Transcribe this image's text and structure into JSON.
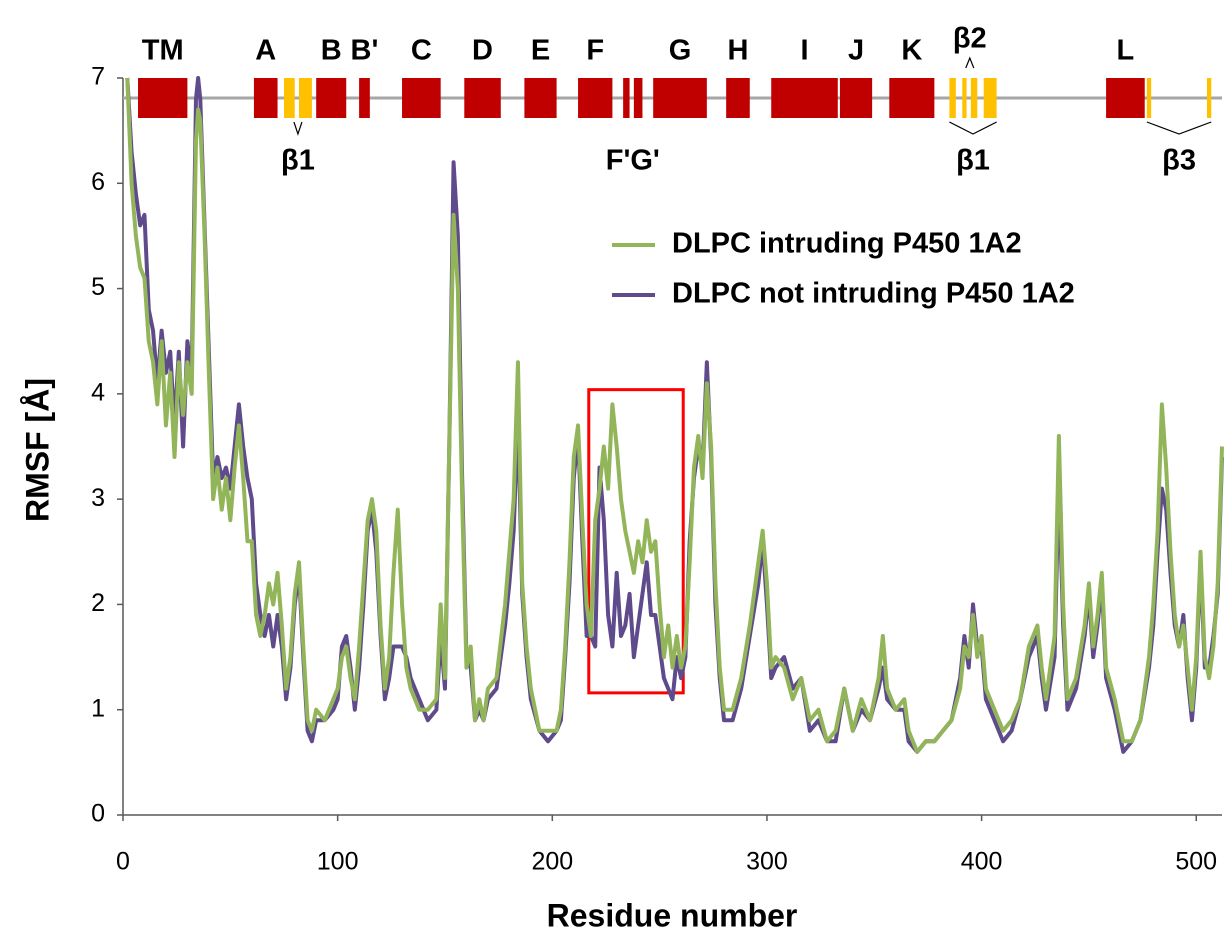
{
  "chart_data": {
    "type": "line",
    "x_label": "Residue number",
    "y_label": "RMSF [Å]",
    "xlim": [
      0,
      512
    ],
    "ylim": [
      0,
      7
    ],
    "xticks": [
      0,
      100,
      200,
      300,
      400,
      500
    ],
    "yticks": [
      0,
      1,
      2,
      3,
      4,
      5,
      6,
      7
    ],
    "legend_position": "upper right",
    "x": [
      2,
      4,
      6,
      8,
      10,
      12,
      14,
      16,
      18,
      20,
      22,
      24,
      26,
      28,
      30,
      32,
      34,
      35,
      36,
      38,
      40,
      42,
      44,
      46,
      48,
      50,
      52,
      54,
      56,
      58,
      60,
      62,
      64,
      66,
      68,
      70,
      72,
      74,
      76,
      78,
      80,
      82,
      84,
      86,
      88,
      90,
      94,
      98,
      100,
      102,
      104,
      106,
      108,
      110,
      112,
      114,
      116,
      118,
      120,
      122,
      124,
      126,
      128,
      130,
      132,
      134,
      138,
      142,
      146,
      148,
      150,
      152,
      154,
      156,
      158,
      160,
      162,
      164,
      166,
      168,
      170,
      174,
      178,
      180,
      182,
      184,
      186,
      188,
      190,
      194,
      198,
      202,
      204,
      206,
      208,
      210,
      212,
      214,
      216,
      218,
      220,
      222,
      224,
      226,
      228,
      230,
      232,
      234,
      236,
      238,
      240,
      242,
      244,
      246,
      248,
      250,
      252,
      254,
      256,
      258,
      260,
      262,
      264,
      266,
      268,
      270,
      272,
      274,
      276,
      278,
      280,
      284,
      288,
      292,
      296,
      298,
      300,
      302,
      304,
      308,
      312,
      316,
      320,
      324,
      328,
      332,
      336,
      340,
      344,
      348,
      352,
      354,
      356,
      360,
      364,
      366,
      370,
      374,
      378,
      382,
      386,
      390,
      392,
      394,
      396,
      398,
      400,
      402,
      406,
      410,
      414,
      418,
      422,
      426,
      428,
      430,
      434,
      436,
      438,
      440,
      444,
      448,
      450,
      452,
      454,
      456,
      458,
      462,
      466,
      470,
      474,
      478,
      480,
      482,
      484,
      486,
      488,
      490,
      492,
      494,
      496,
      498,
      500,
      502,
      504,
      506,
      508,
      510,
      512
    ],
    "series": [
      {
        "name": "DLPC intruding P450 1A2",
        "color": "#93b55a",
        "values": [
          7.0,
          6.0,
          5.5,
          5.2,
          5.1,
          4.5,
          4.3,
          3.9,
          4.5,
          3.7,
          4.2,
          3.4,
          4.3,
          3.8,
          4.3,
          4.0,
          6.4,
          6.7,
          6.6,
          5.5,
          4.2,
          3.0,
          3.3,
          2.9,
          3.2,
          2.8,
          3.3,
          3.7,
          3.2,
          2.6,
          2.6,
          1.9,
          1.7,
          1.9,
          2.2,
          2.0,
          2.3,
          1.8,
          1.2,
          1.5,
          2.1,
          2.4,
          1.6,
          0.9,
          0.8,
          1.0,
          0.9,
          1.1,
          1.2,
          1.5,
          1.6,
          1.3,
          1.1,
          1.6,
          2.2,
          2.8,
          3.0,
          2.7,
          1.8,
          1.2,
          1.5,
          2.3,
          2.9,
          2.0,
          1.4,
          1.2,
          1.0,
          1.0,
          1.1,
          2.0,
          1.3,
          3.5,
          5.7,
          5.0,
          3.0,
          1.4,
          1.6,
          0.9,
          1.1,
          0.9,
          1.2,
          1.3,
          2.0,
          2.5,
          3.0,
          4.3,
          2.2,
          1.6,
          1.2,
          0.8,
          0.8,
          0.8,
          1.0,
          1.6,
          2.4,
          3.4,
          3.7,
          2.8,
          2.0,
          1.7,
          2.8,
          3.1,
          3.5,
          3.1,
          3.9,
          3.5,
          3.0,
          2.7,
          2.5,
          2.3,
          2.6,
          2.4,
          2.8,
          2.5,
          2.6,
          2.0,
          1.5,
          1.8,
          1.4,
          1.7,
          1.4,
          1.6,
          2.4,
          3.3,
          3.6,
          3.2,
          4.1,
          3.5,
          2.2,
          1.4,
          1.0,
          1.0,
          1.3,
          1.8,
          2.4,
          2.7,
          2.2,
          1.4,
          1.5,
          1.4,
          1.1,
          1.3,
          0.9,
          1.0,
          0.7,
          0.8,
          1.2,
          0.8,
          1.1,
          0.9,
          1.3,
          1.7,
          1.2,
          1.0,
          1.1,
          0.8,
          0.6,
          0.7,
          0.7,
          0.8,
          0.9,
          1.2,
          1.6,
          1.5,
          1.9,
          1.5,
          1.7,
          1.2,
          1.0,
          0.8,
          0.9,
          1.1,
          1.6,
          1.8,
          1.4,
          1.1,
          1.7,
          3.6,
          2.0,
          1.1,
          1.3,
          1.8,
          2.2,
          1.6,
          1.9,
          2.3,
          1.4,
          1.1,
          0.7,
          0.7,
          0.9,
          1.5,
          2.0,
          2.7,
          3.9,
          3.3,
          2.5,
          1.9,
          1.6,
          1.8,
          1.4,
          1.0,
          1.5,
          2.5,
          1.5,
          1.3,
          1.6,
          2.2,
          3.5
        ]
      },
      {
        "name": "DLPC not intruding P450 1A2",
        "color": "#5f4b8b",
        "values": [
          7.0,
          6.3,
          5.9,
          5.6,
          5.7,
          4.8,
          4.6,
          4.1,
          4.6,
          4.2,
          4.4,
          3.7,
          4.4,
          3.5,
          4.5,
          4.2,
          6.8,
          7.0,
          6.8,
          5.6,
          4.4,
          3.2,
          3.4,
          3.2,
          3.3,
          3.1,
          3.5,
          3.9,
          3.5,
          3.2,
          3.0,
          2.2,
          1.9,
          1.7,
          1.9,
          1.6,
          1.9,
          1.6,
          1.1,
          1.4,
          2.0,
          2.3,
          1.5,
          0.8,
          0.7,
          0.9,
          0.9,
          1.0,
          1.1,
          1.6,
          1.7,
          1.4,
          1.0,
          1.4,
          2.0,
          2.7,
          2.9,
          2.5,
          1.7,
          1.1,
          1.3,
          1.6,
          1.6,
          1.6,
          1.5,
          1.3,
          1.1,
          0.9,
          1.0,
          1.7,
          1.2,
          3.5,
          6.2,
          5.5,
          3.2,
          1.5,
          1.4,
          0.9,
          1.0,
          0.9,
          1.1,
          1.2,
          1.8,
          2.2,
          2.7,
          3.8,
          2.1,
          1.5,
          1.1,
          0.8,
          0.7,
          0.8,
          0.9,
          1.5,
          2.2,
          3.2,
          3.6,
          2.6,
          1.7,
          1.7,
          1.6,
          3.3,
          2.8,
          1.9,
          1.6,
          2.3,
          1.7,
          1.8,
          2.1,
          1.5,
          1.8,
          2.1,
          2.4,
          1.9,
          1.9,
          1.6,
          1.3,
          1.2,
          1.1,
          1.5,
          1.3,
          1.5,
          2.6,
          3.2,
          3.5,
          3.3,
          4.3,
          3.4,
          2.0,
          1.3,
          0.9,
          0.9,
          1.2,
          1.7,
          2.2,
          2.6,
          2.0,
          1.3,
          1.4,
          1.5,
          1.2,
          1.3,
          0.8,
          0.9,
          0.7,
          0.7,
          1.2,
          0.8,
          1.0,
          0.9,
          1.2,
          1.4,
          1.1,
          1.0,
          1.0,
          0.7,
          0.6,
          0.7,
          0.7,
          0.8,
          0.9,
          1.3,
          1.7,
          1.4,
          2.0,
          1.6,
          1.6,
          1.1,
          0.9,
          0.7,
          0.8,
          1.1,
          1.5,
          1.7,
          1.3,
          1.0,
          1.5,
          3.2,
          1.8,
          1.0,
          1.2,
          1.7,
          2.1,
          1.5,
          1.8,
          2.2,
          1.3,
          1.0,
          0.6,
          0.7,
          0.9,
          1.4,
          1.8,
          2.5,
          3.1,
          2.9,
          2.3,
          1.8,
          1.6,
          1.9,
          1.3,
          0.9,
          1.4,
          2.4,
          1.4,
          1.4,
          1.7,
          2.1,
          3.4
        ]
      }
    ],
    "highlight": {
      "xrange": [
        217,
        261
      ],
      "yrange": [
        1.16,
        4.04
      ],
      "color": "#ff0000"
    },
    "structure": {
      "helix_color": "#c00000",
      "strand_color": "#ffc000",
      "line_color": "#a6a6a6",
      "elements": [
        {
          "type": "helix",
          "label": "TM",
          "start": 7,
          "end": 30
        },
        {
          "type": "helix",
          "label": "A",
          "start": 61,
          "end": 72
        },
        {
          "type": "strand",
          "label": null,
          "start": 75,
          "end": 80
        },
        {
          "type": "strand",
          "label": null,
          "start": 82,
          "end": 88
        },
        {
          "type": "helix",
          "label": "B",
          "start": 90,
          "end": 104
        },
        {
          "type": "helix",
          "label": "B'",
          "start": 110,
          "end": 115
        },
        {
          "type": "helix",
          "label": "C",
          "start": 130,
          "end": 148
        },
        {
          "type": "helix",
          "label": "D",
          "start": 159,
          "end": 176
        },
        {
          "type": "helix",
          "label": "E",
          "start": 187,
          "end": 202
        },
        {
          "type": "helix",
          "label": "F",
          "start": 212,
          "end": 228
        },
        {
          "type": "helix",
          "label": null,
          "start": 233,
          "end": 236
        },
        {
          "type": "helix",
          "label": null,
          "start": 238,
          "end": 242
        },
        {
          "type": "helix",
          "label": "G",
          "start": 247,
          "end": 272
        },
        {
          "type": "helix",
          "label": "H",
          "start": 281,
          "end": 292
        },
        {
          "type": "helix",
          "label": "I",
          "start": 302,
          "end": 333
        },
        {
          "type": "helix",
          "label": "J",
          "start": 334,
          "end": 349
        },
        {
          "type": "helix",
          "label": "K",
          "start": 357,
          "end": 378
        },
        {
          "type": "strand",
          "label": null,
          "start": 385,
          "end": 388
        },
        {
          "type": "strand",
          "label": null,
          "start": 391,
          "end": 393
        },
        {
          "type": "strand",
          "label": null,
          "start": 395,
          "end": 398
        },
        {
          "type": "strand",
          "label": null,
          "start": 401,
          "end": 407
        },
        {
          "type": "helix",
          "label": "L",
          "start": 458,
          "end": 476
        },
        {
          "type": "strand",
          "label": null,
          "start": 477,
          "end": 479
        },
        {
          "type": "strand",
          "label": null,
          "start": 505,
          "end": 507
        }
      ],
      "groups": [
        {
          "label": "β1",
          "range": [
            75,
            88
          ],
          "side": "below",
          "brace": true
        },
        {
          "label": "F'G'",
          "range": [
            233,
            242
          ],
          "side": "below",
          "brace": false
        },
        {
          "label": "β2",
          "range": [
            391,
            398
          ],
          "side": "above",
          "brace": true
        },
        {
          "label": "β1",
          "range": [
            385,
            407
          ],
          "side": "below",
          "brace": true
        },
        {
          "label": "β3",
          "range": [
            477,
            507
          ],
          "side": "below",
          "brace": true
        }
      ]
    }
  }
}
